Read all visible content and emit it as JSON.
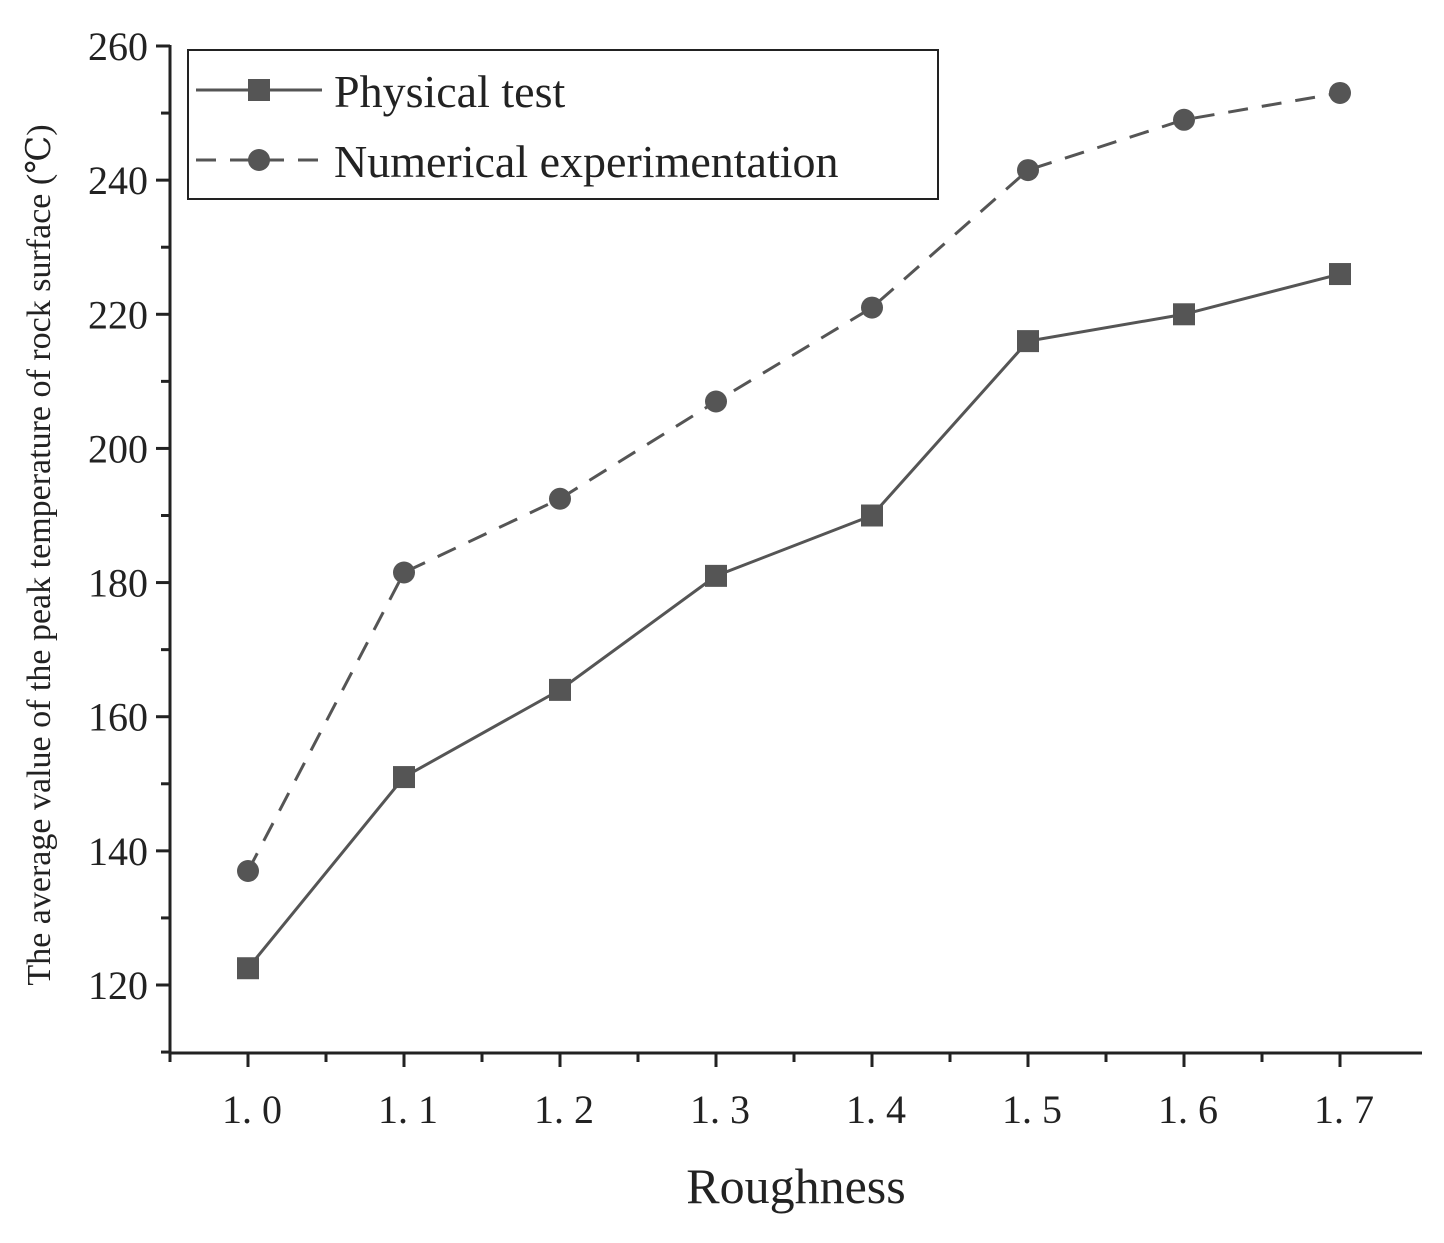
{
  "chart_data": {
    "type": "line",
    "title": "",
    "xlabel": "Roughness",
    "ylabel": "The average value of the peak temperature of rock surface (℃)",
    "categories": [
      "1. 0",
      "1. 1",
      "1. 2",
      "1. 3",
      "1. 4",
      "1. 5",
      "1. 6",
      "1. 7"
    ],
    "x": [
      1.0,
      1.1,
      1.2,
      1.3,
      1.4,
      1.5,
      1.6,
      1.7
    ],
    "xlim": [
      0.95,
      1.75
    ],
    "ylim": [
      110,
      260
    ],
    "yticks": [
      120,
      140,
      160,
      180,
      200,
      220,
      240,
      260
    ],
    "grid": false,
    "legend_position": "top-left",
    "series": [
      {
        "name": "Physical test",
        "line_style": "solid",
        "marker": "square",
        "color": "#555555",
        "values": [
          122.5,
          151,
          164,
          181,
          190,
          216,
          220,
          226
        ]
      },
      {
        "name": "Numerical experimentation",
        "line_style": "dashed",
        "marker": "circle",
        "color": "#555555",
        "values": [
          137,
          181.5,
          192.5,
          207,
          221,
          241.5,
          249,
          253
        ]
      }
    ]
  }
}
